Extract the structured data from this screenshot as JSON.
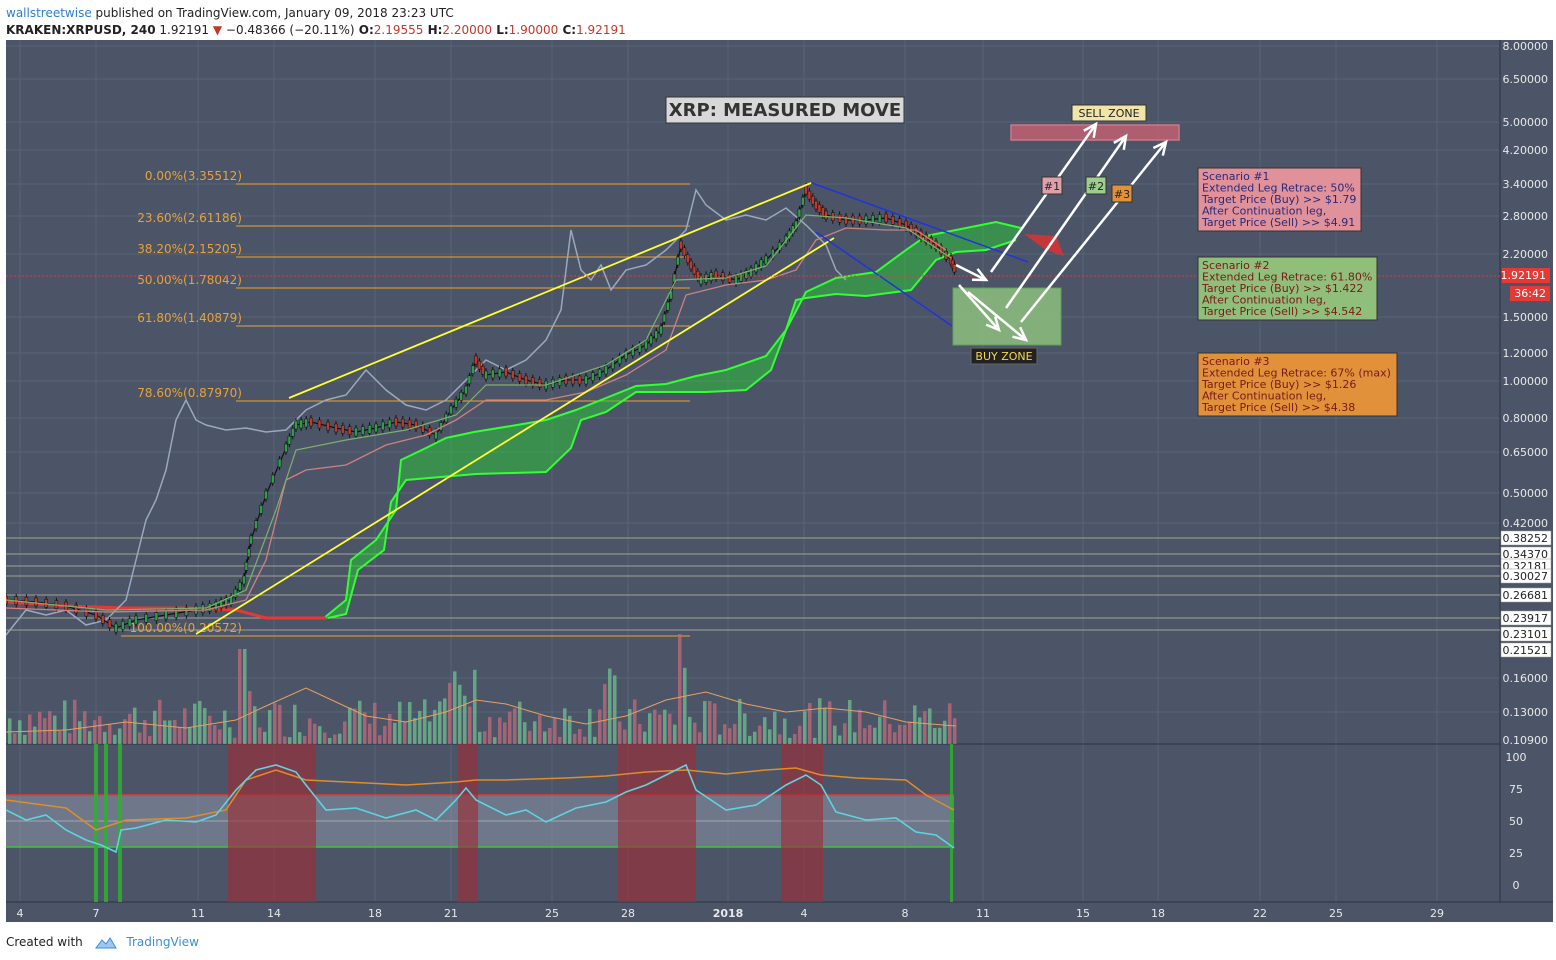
{
  "header": {
    "author": "wallstreetwise",
    "published_text": " published on TradingView.com, January 09, 2018 23:23 UTC",
    "symbol": "KRAKEN:XRPUSD, 240",
    "last": " 1.92191 ",
    "change": " −0.48366 (−20.11%)",
    "o_label": " O:",
    "o_value": "2.19555",
    "h_label": " H:",
    "h_value": "2.20000",
    "l_label": " L:",
    "l_value": "1.90000",
    "c_label": " C:",
    "c_value": "1.92191"
  },
  "colors": {
    "background": "#4b5567",
    "grid": "#5a6477",
    "fib": "#e8a237",
    "trendline_yellow": "#ffff33",
    "trendline_blue": "#2233dd",
    "cloud": "#2dbf3a",
    "cloud_line": "#33ff33",
    "price_red": "#e53935",
    "volume_green": "#6fbf8f",
    "volume_red": "#c06a7a",
    "rsi_line": "#5fd3e0",
    "rsi_signal": "#e08c2a"
  },
  "chart": {
    "title": "XRP: MEASURED MOVE",
    "sell_zone_label": "SELL ZONE",
    "buy_zone_label": "BUY ZONE",
    "arrow_labels": [
      "#1",
      "#2",
      "#3"
    ],
    "fib_levels": [
      "0.00%(3.35512)",
      "23.60%(2.61186)",
      "38.20%(2.15205)",
      "50.00%(1.78042)",
      "61.80%(1.40879)",
      "78.60%(0.87970)",
      "100.00%(0.20572)"
    ],
    "price_axis": [
      "8.00000",
      "6.50000",
      "5.00000",
      "4.20000",
      "3.40000",
      "2.80000",
      "2.20000",
      "1.92191",
      "36:42",
      "1.50000",
      "1.20000",
      "1.00000",
      "0.80000",
      "0.65000",
      "0.50000",
      "0.42000",
      "0.38252",
      "0.34370",
      "0.32181",
      "0.30027",
      "0.26681",
      "0.23917",
      "0.23101",
      "0.21521",
      "0.16000",
      "0.13000",
      "0.10900"
    ],
    "rsi_axis": [
      "100",
      "75",
      "50",
      "25",
      "0"
    ],
    "time_axis": [
      "4",
      "7",
      "11",
      "14",
      "18",
      "21",
      "25",
      "28",
      "2018",
      "4",
      "8",
      "11",
      "15",
      "18",
      "22",
      "25",
      "29"
    ]
  },
  "scenarios": [
    {
      "lines": [
        "Scenario #1",
        "Extended Leg Retrace: 50%",
        "Target Price (Buy) >> $1.79",
        "After Continuation leg,",
        "Target Price (Sell) >> $4.91"
      ],
      "color": "#e0919a"
    },
    {
      "lines": [
        "Scenario #2",
        "Extended Leg Retrace: 61.80%",
        "Target Price (Buy) >> $1.422",
        "After Continuation leg,",
        "Target Price (Sell) >> $4.542"
      ],
      "color": "#8fbf7a"
    },
    {
      "lines": [
        "Scenario #3",
        "Extended Leg Retrace: 67% (max)",
        "Target Price (Buy) >> $1.26",
        "After Continuation leg,",
        "Target Price (Sell) >> $4.38"
      ],
      "color": "#e0913a"
    }
  ],
  "footer": {
    "created_with": "Created with",
    "brand": "TradingView"
  }
}
